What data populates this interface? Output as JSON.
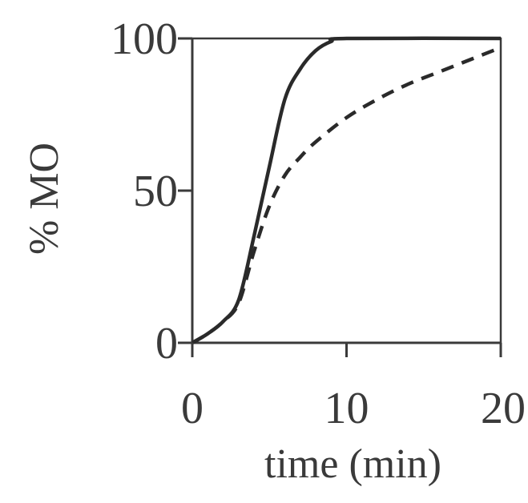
{
  "chart_data": {
    "type": "line",
    "xlabel": "time (min)",
    "ylabel": "% MO",
    "xlim": [
      0,
      20
    ],
    "ylim": [
      0,
      100
    ],
    "xticks": [
      0,
      10,
      20
    ],
    "yticks": [
      0,
      50,
      100
    ],
    "grid": false,
    "series": [
      {
        "style": "solid",
        "color": "#2a2a2a",
        "x": [
          0,
          1,
          2,
          3,
          4,
          5,
          6,
          7,
          8,
          9,
          10,
          20
        ],
        "y": [
          0,
          3,
          7,
          14,
          35,
          58,
          80,
          90,
          96,
          99,
          100,
          100
        ]
      },
      {
        "style": "dashed",
        "color": "#2a2a2a",
        "x": [
          0,
          1,
          2,
          3,
          4,
          5,
          6,
          7,
          8,
          10,
          12,
          14,
          16,
          18,
          20
        ],
        "y": [
          0,
          3,
          7,
          13,
          30,
          45,
          55,
          61,
          66,
          74,
          80,
          85,
          89,
          93,
          97
        ]
      }
    ]
  }
}
